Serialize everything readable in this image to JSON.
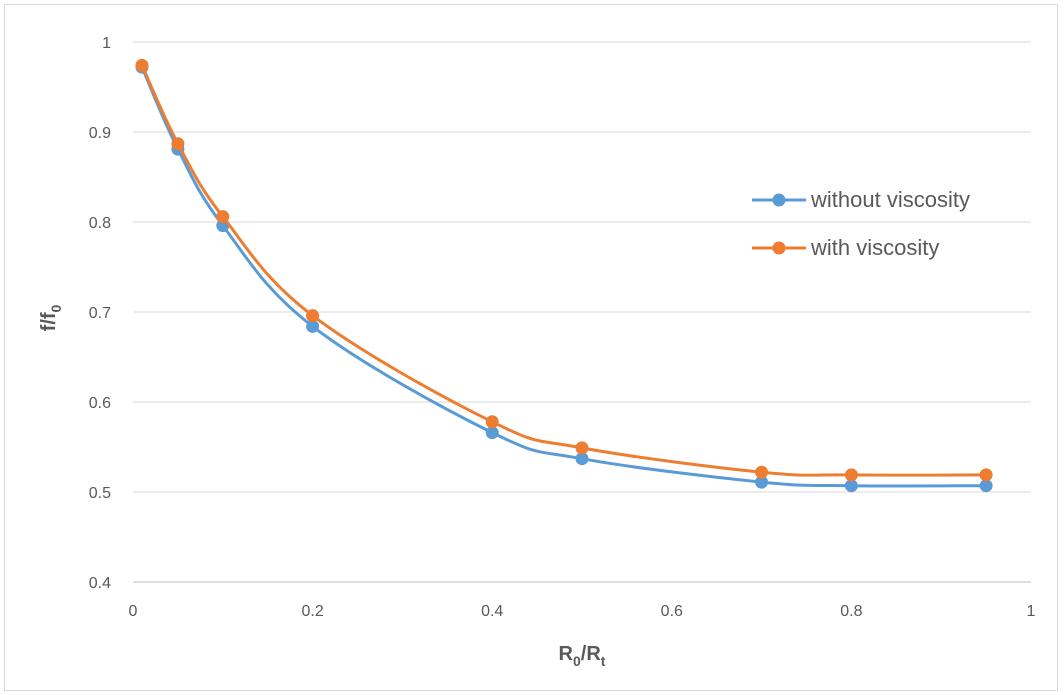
{
  "chart_data": {
    "type": "line",
    "x": [
      0.01,
      0.05,
      0.1,
      0.2,
      0.4,
      0.5,
      0.7,
      0.8,
      0.95
    ],
    "series": [
      {
        "name": "without viscosity",
        "color": "#5b9bd5",
        "values": [
          0.972,
          0.881,
          0.796,
          0.684,
          0.566,
          0.537,
          0.511,
          0.507,
          0.507
        ]
      },
      {
        "name": "with viscosity",
        "color": "#ed7d31",
        "values": [
          0.974,
          0.887,
          0.806,
          0.696,
          0.578,
          0.549,
          0.522,
          0.519,
          0.519
        ]
      }
    ],
    "xlim": [
      0,
      1
    ],
    "ylim": [
      0.4,
      1
    ],
    "x_ticks": [
      "0",
      "0.2",
      "0.4",
      "0.6",
      "0.8",
      "1"
    ],
    "y_ticks": [
      "0.4",
      "0.5",
      "0.6",
      "0.7",
      "0.8",
      "0.9",
      "1"
    ],
    "xlabel": {
      "main": "R",
      "sub1": "0",
      "sep": "/R",
      "sub2": "t"
    },
    "ylabel": {
      "main": "f/f",
      "sub": "0"
    },
    "grid": "horizontal",
    "legend_position": "right"
  }
}
